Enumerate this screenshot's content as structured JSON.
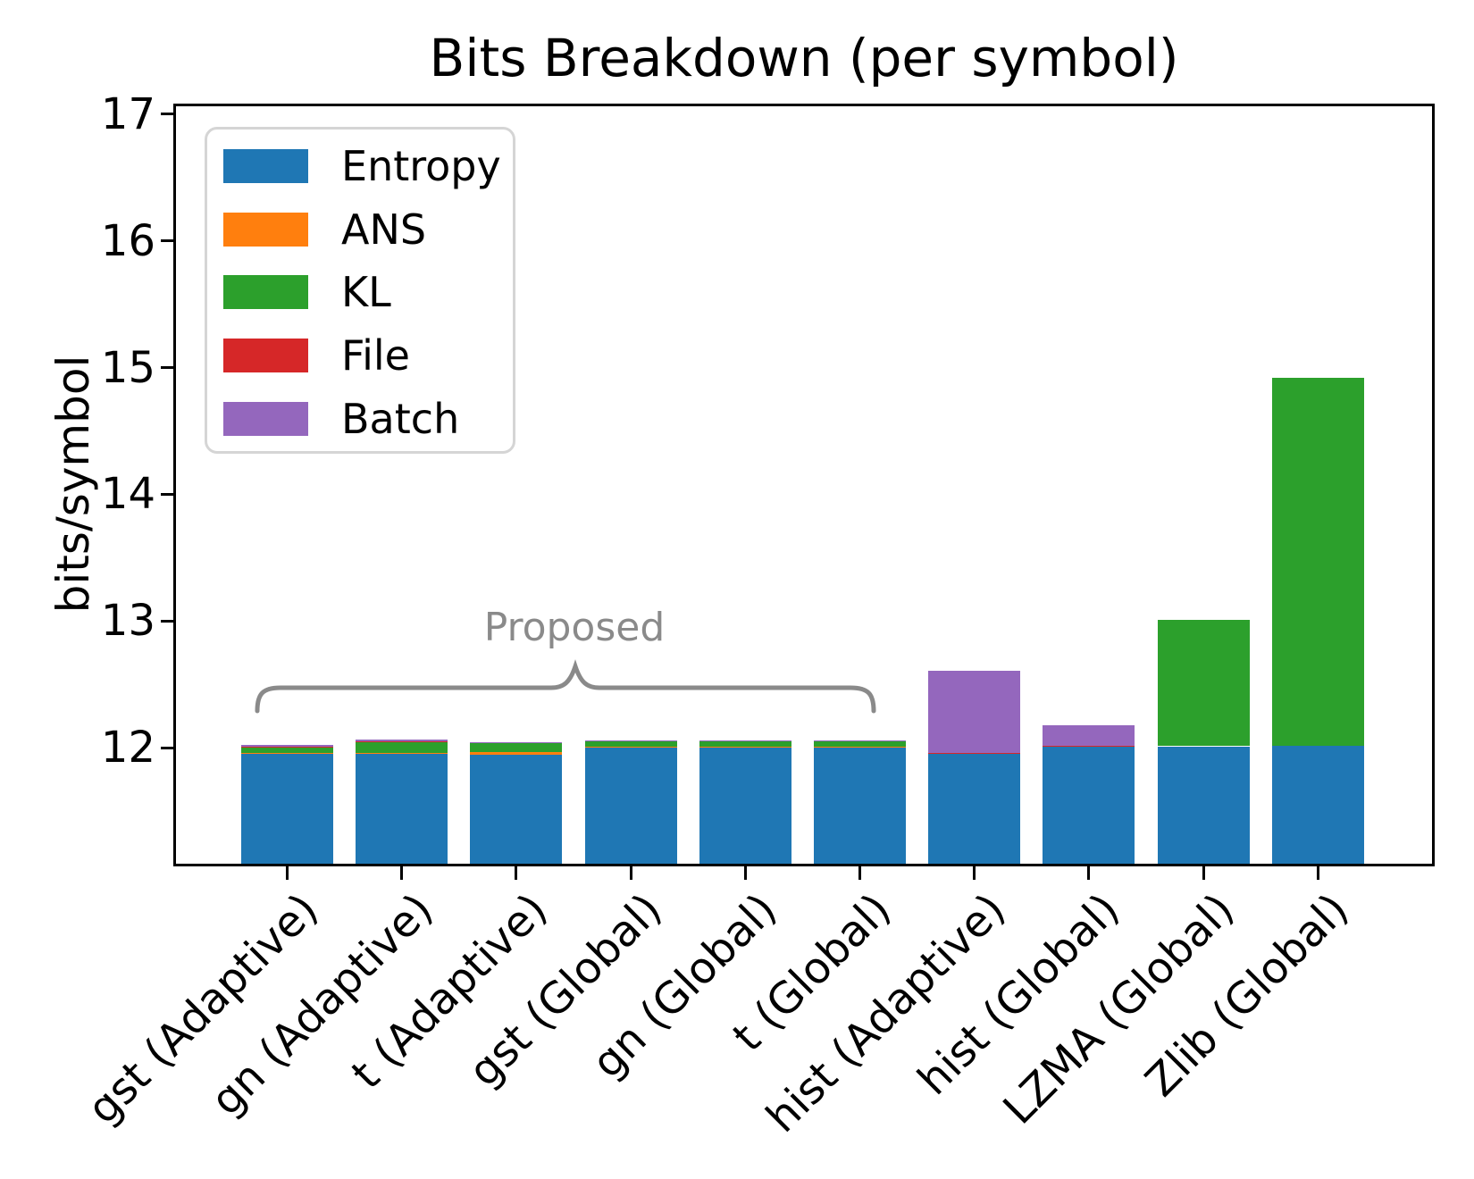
{
  "chart_data": {
    "type": "bar",
    "stacked": true,
    "title": "Bits Breakdown (per symbol)",
    "xlabel": "",
    "ylabel": "bits/symbol",
    "ylim": [
      11.085,
      17.063
    ],
    "yticks": [
      12,
      13,
      14,
      15,
      16,
      17
    ],
    "grid": false,
    "legend_position": "upper left",
    "categories": [
      "gst (Adaptive)",
      "gn (Adaptive)",
      "t (Adaptive)",
      "gst (Global)",
      "gn (Global)",
      "t (Global)",
      "hist (Adaptive)",
      "hist (Global)",
      "LZMA (Global)",
      "Zlib (Global)"
    ],
    "series": [
      {
        "name": "Entropy",
        "color": "#1f77b4",
        "values": [
          11.954,
          11.958,
          11.947,
          12.005,
          12.005,
          12.005,
          11.955,
          12.012,
          12.012,
          12.015
        ]
      },
      {
        "name": "ANS",
        "color": "#ff7f0e",
        "values": [
          0.004,
          0.004,
          0.018,
          0.002,
          0.002,
          0.002,
          0.002,
          0.002,
          0.0,
          0.0
        ]
      },
      {
        "name": "KL",
        "color": "#2ca02c",
        "values": [
          0.052,
          0.088,
          0.076,
          0.048,
          0.048,
          0.048,
          0.0,
          0.0,
          1.0,
          2.905
        ]
      },
      {
        "name": "File",
        "color": "#d62728",
        "values": [
          0.001,
          0.001,
          0.001,
          0.001,
          0.001,
          0.001,
          0.001,
          0.001,
          0.0,
          0.0
        ]
      },
      {
        "name": "Batch",
        "color": "#9467bd",
        "values": [
          0.011,
          0.012,
          0.002,
          0.002,
          0.002,
          0.002,
          0.65,
          0.165,
          0.0,
          0.0
        ]
      }
    ],
    "stack_totals": [
      12.02,
      12.06,
      12.04,
      12.06,
      12.06,
      12.06,
      12.61,
      12.18,
      13.01,
      14.92
    ],
    "annotation": {
      "label": "Proposed",
      "applies_to": [
        "gst (Adaptive)",
        "gn (Adaptive)",
        "t (Adaptive)",
        "gst (Global)",
        "gn (Global)",
        "t (Global)"
      ],
      "color": "#8a8a8a"
    }
  },
  "legend": {
    "entries": [
      {
        "label": "Entropy",
        "color": "#1f77b4"
      },
      {
        "label": "ANS",
        "color": "#ff7f0e"
      },
      {
        "label": "KL",
        "color": "#2ca02c"
      },
      {
        "label": "File",
        "color": "#d62728"
      },
      {
        "label": "Batch",
        "color": "#9467bd"
      }
    ]
  }
}
